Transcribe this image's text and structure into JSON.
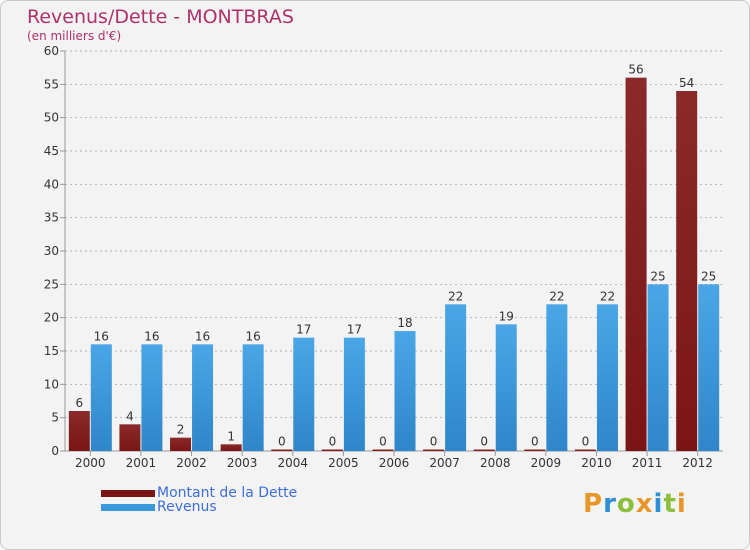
{
  "title": "Revenus/Dette - MONTBRAS",
  "subtitle": "(en milliers d'€)",
  "logo": {
    "letters": [
      {
        "ch": "P",
        "color": "#e8962a"
      },
      {
        "ch": "r",
        "color": "#2d8fd6"
      },
      {
        "ch": "o",
        "color": "#8bbf3c"
      },
      {
        "ch": "x",
        "color": "#e8962a"
      },
      {
        "ch": "i",
        "color": "#2d8fd6"
      },
      {
        "ch": "t",
        "color": "#8bbf3c"
      },
      {
        "ch": "i",
        "color": "#e8962a"
      }
    ]
  },
  "colors": {
    "dette": "#7a1515",
    "revenus": "#3a98dd",
    "axis": "#999999",
    "grid": "#999999",
    "text": "#333333"
  },
  "chart_data": {
    "type": "bar",
    "title": "Revenus/Dette - MONTBRAS",
    "ylabel": "(en milliers d'€)",
    "xlabel": "",
    "categories": [
      "2000",
      "2001",
      "2002",
      "2003",
      "2004",
      "2005",
      "2006",
      "2007",
      "2008",
      "2009",
      "2010",
      "2011",
      "2012"
    ],
    "series": [
      {
        "name": "Montant de la Dette",
        "values": [
          6,
          4,
          2,
          1,
          0,
          0,
          0,
          0,
          0,
          0,
          0,
          56,
          54
        ]
      },
      {
        "name": "Revenus",
        "values": [
          16,
          16,
          16,
          16,
          17,
          17,
          18,
          22,
          19,
          22,
          22,
          25,
          25
        ]
      }
    ],
    "ylim": [
      0,
      60
    ],
    "yticks": [
      0,
      5,
      10,
      15,
      20,
      25,
      30,
      35,
      40,
      45,
      50,
      55,
      60
    ],
    "grid": "horizontal dashed",
    "legend": "bottom-left"
  }
}
